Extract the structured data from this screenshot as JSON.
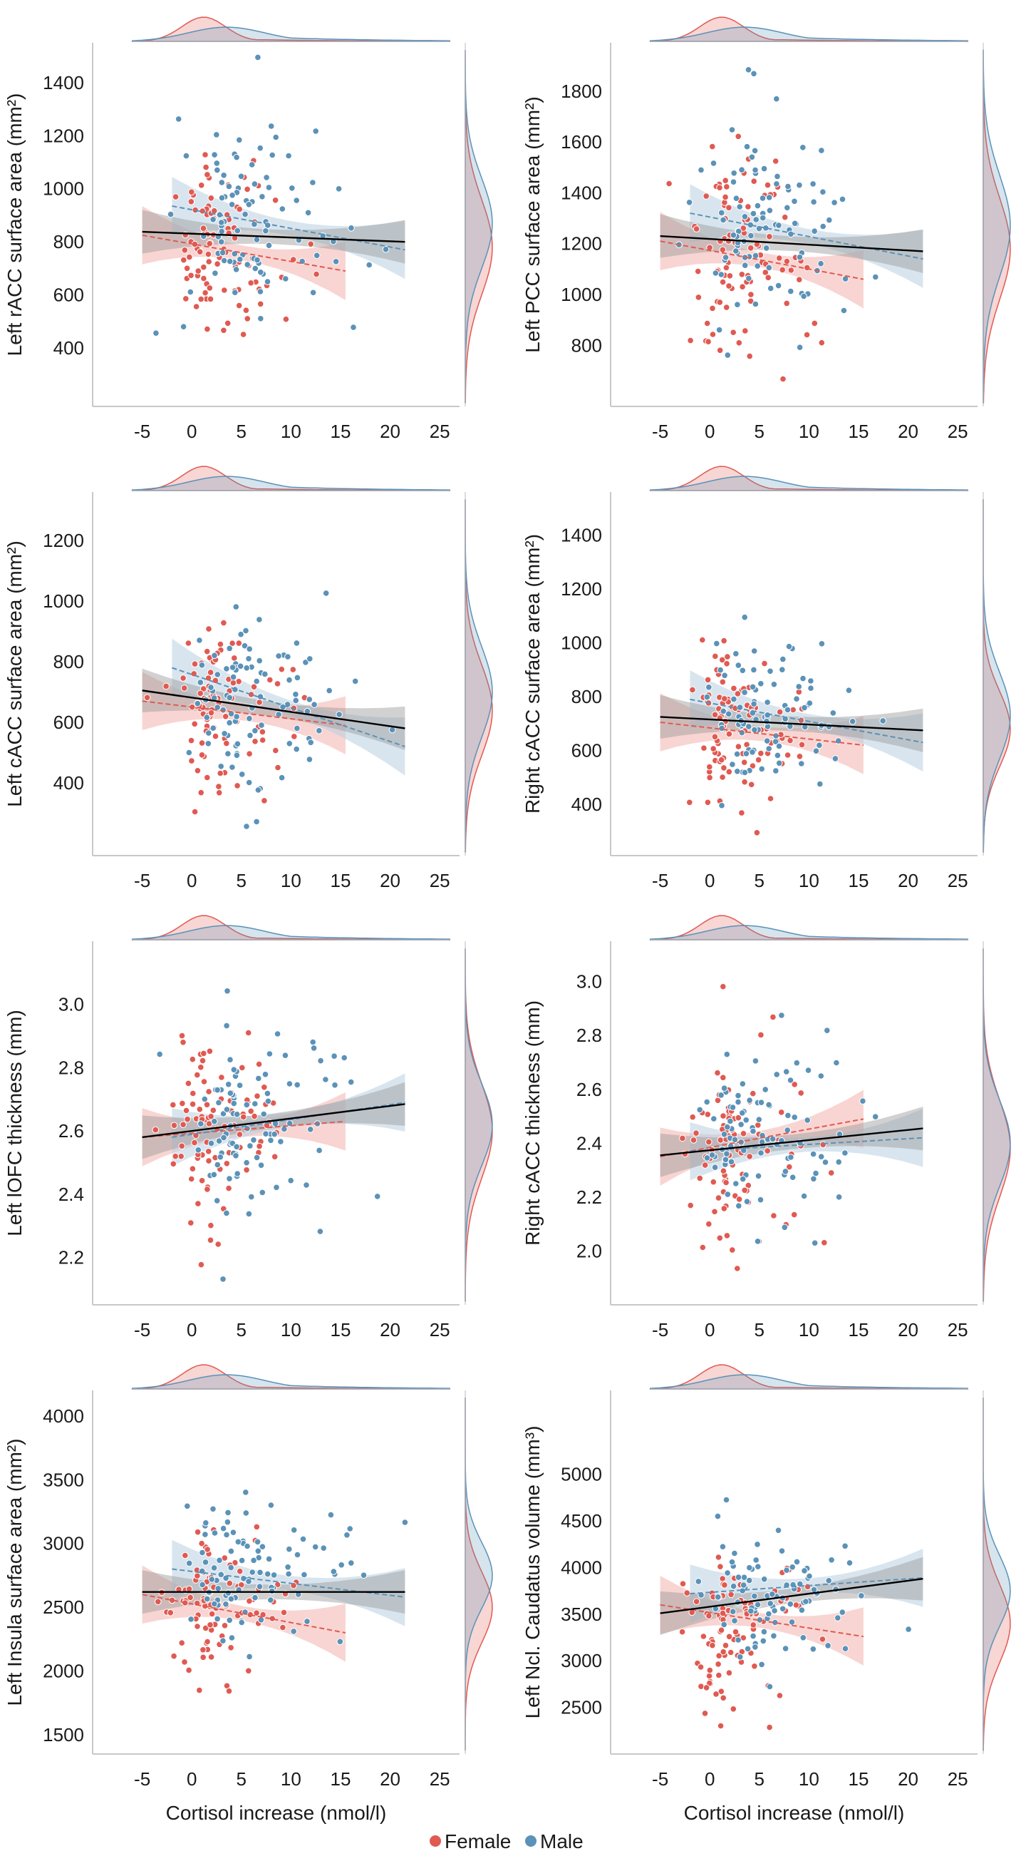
{
  "colors": {
    "female": "#e05a52",
    "male": "#5b92b8",
    "overall": "#000000",
    "female_band": "#f3b3ad",
    "male_band": "#b9cfe0",
    "overall_band": "#9a9a9a"
  },
  "legend": {
    "female": "Female",
    "male": "Male",
    "placement": "bottom-center"
  },
  "chart_data": [
    {
      "type": "scatter",
      "xlabel": "",
      "ylabel": "Left rACC surface area (mm²)",
      "xlim": [
        -10,
        27
      ],
      "ylim": [
        180,
        1550
      ],
      "xticks": [
        "-5",
        "0",
        "5",
        "10",
        "15",
        "20",
        "25"
      ],
      "yticks": [
        "400",
        "600",
        "800",
        "1000",
        "1200",
        "1400"
      ],
      "fits": {
        "female": [
          [
            -5,
            825
          ],
          [
            15.5,
            690
          ]
        ],
        "male": [
          [
            -2,
            935
          ],
          [
            21.5,
            770
          ]
        ],
        "overall": [
          [
            -5,
            838
          ],
          [
            21.5,
            800
          ]
        ]
      },
      "cloud": {
        "female": [
          2,
          780,
          180
        ],
        "male": [
          5,
          870,
          170
        ]
      }
    },
    {
      "type": "scatter",
      "xlabel": "",
      "ylabel": "Left PCC surface area (mm²)",
      "xlim": [
        -10,
        27
      ],
      "ylim": [
        560,
        1990
      ],
      "xticks": [
        "-5",
        "0",
        "5",
        "10",
        "15",
        "20",
        "25"
      ],
      "yticks": [
        "800",
        "1000",
        "1200",
        "1400",
        "1600",
        "1800"
      ],
      "fits": {
        "female": [
          [
            -5,
            1210
          ],
          [
            15.5,
            1060
          ]
        ],
        "male": [
          [
            -2,
            1320
          ],
          [
            21.5,
            1140
          ]
        ],
        "overall": [
          [
            -5,
            1230
          ],
          [
            21.5,
            1170
          ]
        ]
      },
      "cloud": {
        "female": [
          2,
          1180,
          200
        ],
        "male": [
          5,
          1270,
          200
        ]
      }
    },
    {
      "type": "scatter",
      "xlabel": "",
      "ylabel": "Left cACC surface area (mm²)",
      "xlim": [
        -10,
        27
      ],
      "ylim": [
        160,
        1360
      ],
      "xticks": [
        "-5",
        "0",
        "5",
        "10",
        "15",
        "20",
        "25"
      ],
      "yticks": [
        "400",
        "600",
        "800",
        "1000",
        "1200"
      ],
      "fits": {
        "female": [
          [
            -5,
            670
          ],
          [
            15.5,
            590
          ]
        ],
        "male": [
          [
            -2,
            780
          ],
          [
            21.5,
            520
          ]
        ],
        "overall": [
          [
            -5,
            705
          ],
          [
            21.5,
            580
          ]
        ]
      },
      "cloud": {
        "female": [
          2,
          640,
          150
        ],
        "male": [
          5,
          700,
          150
        ]
      }
    },
    {
      "type": "scatter",
      "xlabel": "",
      "ylabel": "Right cACC surface area (mm²)",
      "xlim": [
        -10,
        27
      ],
      "ylim": [
        210,
        1560
      ],
      "xticks": [
        "-5",
        "0",
        "5",
        "10",
        "15",
        "20",
        "25"
      ],
      "yticks": [
        "400",
        "600",
        "800",
        "1000",
        "1200",
        "1400"
      ],
      "fits": {
        "female": [
          [
            -5,
            705
          ],
          [
            15.5,
            620
          ]
        ],
        "male": [
          [
            -2,
            790
          ],
          [
            21.5,
            630
          ]
        ],
        "overall": [
          [
            -5,
            725
          ],
          [
            21.5,
            675
          ]
        ]
      },
      "cloud": {
        "female": [
          2,
          680,
          140
        ],
        "male": [
          5,
          730,
          160
        ]
      }
    },
    {
      "type": "scatter",
      "xlabel": "",
      "ylabel": "Left lOFC thickness (mm)",
      "xlim": [
        -10,
        27
      ],
      "ylim": [
        2.05,
        3.2
      ],
      "xticks": [
        "-5",
        "0",
        "5",
        "10",
        "15",
        "20",
        "25"
      ],
      "yticks": [
        "2.2",
        "2.4",
        "2.6",
        "2.8",
        "3.0"
      ],
      "fits": {
        "female": [
          [
            -5,
            2.58
          ],
          [
            15.5,
            2.63
          ]
        ],
        "male": [
          [
            -2,
            2.58
          ],
          [
            21.5,
            2.69
          ]
        ],
        "overall": [
          [
            -5,
            2.58
          ],
          [
            21.5,
            2.685
          ]
        ]
      },
      "cloud": {
        "female": [
          2,
          2.6,
          0.15
        ],
        "male": [
          5,
          2.62,
          0.13
        ]
      }
    },
    {
      "type": "scatter",
      "xlabel": "",
      "ylabel": "Right cACC thickness (mm)",
      "xlim": [
        -10,
        27
      ],
      "ylim": [
        1.8,
        3.15
      ],
      "xticks": [
        "-5",
        "0",
        "5",
        "10",
        "15",
        "20",
        "25"
      ],
      "yticks": [
        "2.0",
        "2.2",
        "2.4",
        "2.6",
        "2.8",
        "3.0"
      ],
      "fits": {
        "female": [
          [
            -5,
            2.35
          ],
          [
            15.5,
            2.49
          ]
        ],
        "male": [
          [
            -2,
            2.37
          ],
          [
            21.5,
            2.42
          ]
        ],
        "overall": [
          [
            -5,
            2.355
          ],
          [
            21.5,
            2.455
          ]
        ]
      },
      "cloud": {
        "female": [
          2,
          2.38,
          0.18
        ],
        "male": [
          5,
          2.4,
          0.16
        ]
      }
    },
    {
      "type": "scatter",
      "xlabel": "Cortisol increase (nmol/l)",
      "ylabel": "Left Insula surface area (mm²)",
      "xlim": [
        -10,
        27
      ],
      "ylim": [
        1350,
        4200
      ],
      "xticks": [
        "-5",
        "0",
        "5",
        "10",
        "15",
        "20",
        "25"
      ],
      "yticks": [
        "1500",
        "2000",
        "2500",
        "3000",
        "3500",
        "4000"
      ],
      "fits": {
        "female": [
          [
            -5,
            2600
          ],
          [
            15.5,
            2300
          ]
        ],
        "male": [
          [
            -2,
            2800
          ],
          [
            21.5,
            2580
          ]
        ],
        "overall": [
          [
            -5,
            2620
          ],
          [
            21.5,
            2620
          ]
        ]
      },
      "cloud": {
        "female": [
          2,
          2500,
          280
        ],
        "male": [
          5,
          2750,
          260
        ]
      }
    },
    {
      "type": "scatter",
      "xlabel": "Cortisol increase (nmol/l)",
      "ylabel": "Left Ncl. Caudatus volume (mm³)",
      "xlim": [
        -10,
        27
      ],
      "ylim": [
        2000,
        5900
      ],
      "xticks": [
        "-5",
        "0",
        "5",
        "10",
        "15",
        "20",
        "25"
      ],
      "yticks": [
        "2500",
        "3000",
        "3500",
        "4000",
        "4500",
        "5000"
      ],
      "fits": {
        "female": [
          [
            -5,
            3600
          ],
          [
            15.5,
            3260
          ]
        ],
        "male": [
          [
            -2,
            3720
          ],
          [
            21.5,
            3890
          ]
        ],
        "overall": [
          [
            -5,
            3510
          ],
          [
            21.5,
            3880
          ]
        ]
      },
      "cloud": {
        "female": [
          2,
          3400,
          420
        ],
        "male": [
          5,
          3750,
          380
        ]
      }
    }
  ]
}
